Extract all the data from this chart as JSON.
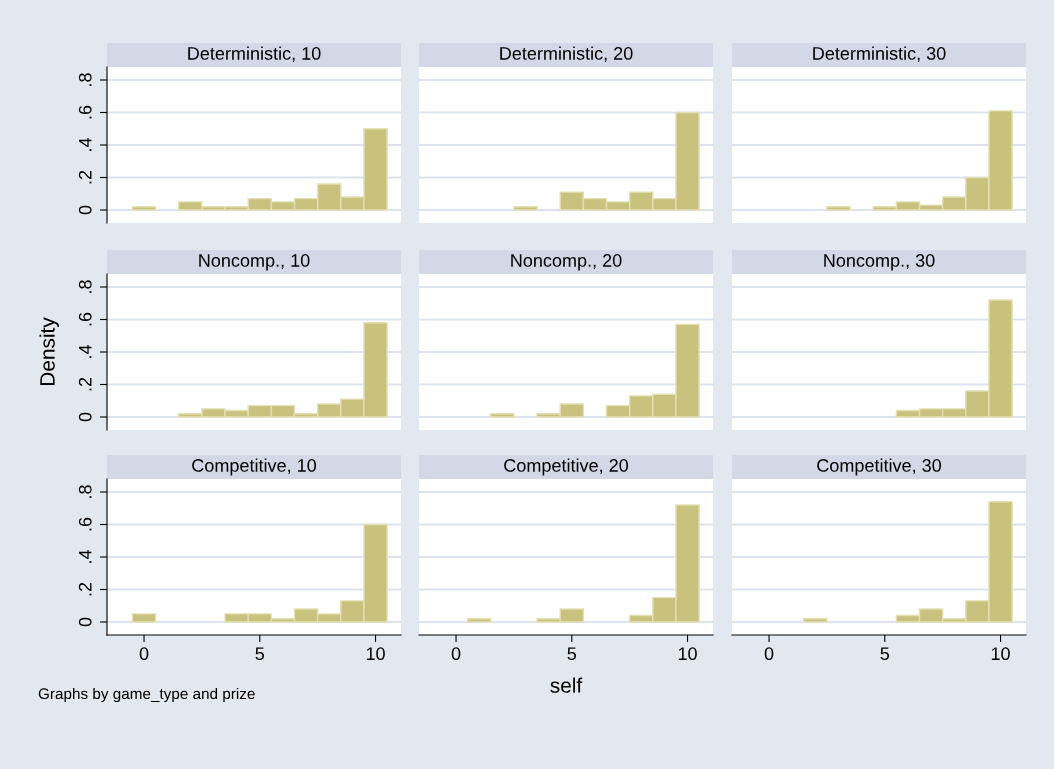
{
  "chart_data": [
    {
      "type": "histogram",
      "title": "Deterministic, 10",
      "bins": [
        -0.5,
        0.5,
        1.5,
        2.5,
        3.5,
        4.5,
        5.5,
        6.5,
        7.5,
        8.5,
        9.5,
        10.5
      ],
      "values": [
        0.02,
        0,
        0.05,
        0.02,
        0.02,
        0.07,
        0.05,
        0.07,
        0.16,
        0.08,
        0.5
      ],
      "color": "#c9c27f",
      "xlim": [
        -1.6,
        11.1
      ],
      "ylim": [
        -0.08,
        0.88
      ],
      "yticks": [
        {
          "value": 0,
          "label": "0"
        },
        {
          "value": 0.2,
          "label": ".2"
        },
        {
          "value": 0.4,
          "label": ".4"
        },
        {
          "value": 0.6,
          "label": ".6"
        },
        {
          "value": 0.8,
          "label": ".8"
        }
      ],
      "grid": "y",
      "tick_labels": "y"
    },
    {
      "type": "histogram",
      "title": "Deterministic, 20",
      "bins": [
        -0.5,
        0.5,
        1.5,
        2.5,
        3.5,
        4.5,
        5.5,
        6.5,
        7.5,
        8.5,
        9.5,
        10.5
      ],
      "values": [
        0,
        0,
        0,
        0.02,
        0,
        0.11,
        0.07,
        0.05,
        0.11,
        0.07,
        0.6
      ],
      "color": "#c9c27f",
      "xlim": [
        -1.6,
        11.1
      ],
      "ylim": [
        -0.08,
        0.88
      ],
      "yticks": [
        {
          "value": 0,
          "label": null
        },
        {
          "value": 0.2,
          "label": null
        },
        {
          "value": 0.4,
          "label": null
        },
        {
          "value": 0.6,
          "label": null
        },
        {
          "value": 0.8,
          "label": null
        }
      ],
      "grid": "y",
      "tick_labels": false
    },
    {
      "type": "histogram",
      "title": "Deterministic, 30",
      "bins": [
        -0.5,
        0.5,
        1.5,
        2.5,
        3.5,
        4.5,
        5.5,
        6.5,
        7.5,
        8.5,
        9.5,
        10.5
      ],
      "values": [
        0,
        0,
        0,
        0.02,
        0,
        0.02,
        0.05,
        0.03,
        0.08,
        0.2,
        0.61
      ],
      "color": "#c9c27f",
      "xlim": [
        -1.6,
        11.1
      ],
      "ylim": [
        -0.08,
        0.88
      ],
      "yticks": [
        {
          "value": 0,
          "label": null
        },
        {
          "value": 0.2,
          "label": null
        },
        {
          "value": 0.4,
          "label": null
        },
        {
          "value": 0.6,
          "label": null
        },
        {
          "value": 0.8,
          "label": null
        }
      ],
      "grid": "y",
      "tick_labels": false
    },
    {
      "type": "histogram",
      "title": "Noncomp., 10",
      "ylabel": "Density",
      "bins": [
        -0.5,
        0.5,
        1.5,
        2.5,
        3.5,
        4.5,
        5.5,
        6.5,
        7.5,
        8.5,
        9.5,
        10.5
      ],
      "values": [
        0,
        0,
        0.02,
        0.05,
        0.04,
        0.07,
        0.07,
        0.02,
        0.08,
        0.11,
        0.58
      ],
      "color": "#c9c27f",
      "xlim": [
        -1.6,
        11.1
      ],
      "ylim": [
        -0.08,
        0.88
      ],
      "yticks": [
        {
          "value": 0,
          "label": "0"
        },
        {
          "value": 0.2,
          "label": ".2"
        },
        {
          "value": 0.4,
          "label": ".4"
        },
        {
          "value": 0.6,
          "label": ".6"
        },
        {
          "value": 0.8,
          "label": ".8"
        }
      ],
      "grid": "y",
      "tick_labels": "y"
    },
    {
      "type": "histogram",
      "title": "Noncomp., 20",
      "bins": [
        -0.5,
        0.5,
        1.5,
        2.5,
        3.5,
        4.5,
        5.5,
        6.5,
        7.5,
        8.5,
        9.5,
        10.5
      ],
      "values": [
        0,
        0,
        0.02,
        0,
        0.02,
        0.08,
        0,
        0.07,
        0.13,
        0.14,
        0.57
      ],
      "color": "#c9c27f",
      "xlim": [
        -1.6,
        11.1
      ],
      "ylim": [
        -0.08,
        0.88
      ],
      "yticks": [
        {
          "value": 0,
          "label": null
        },
        {
          "value": 0.2,
          "label": null
        },
        {
          "value": 0.4,
          "label": null
        },
        {
          "value": 0.6,
          "label": null
        },
        {
          "value": 0.8,
          "label": null
        }
      ],
      "grid": "y",
      "tick_labels": false
    },
    {
      "type": "histogram",
      "title": "Noncomp., 30",
      "bins": [
        -0.5,
        0.5,
        1.5,
        2.5,
        3.5,
        4.5,
        5.5,
        6.5,
        7.5,
        8.5,
        9.5,
        10.5
      ],
      "values": [
        0,
        0,
        0,
        0,
        0,
        0,
        0.04,
        0.05,
        0.05,
        0.16,
        0.72
      ],
      "color": "#c9c27f",
      "xlim": [
        -1.6,
        11.1
      ],
      "ylim": [
        -0.08,
        0.88
      ],
      "yticks": [
        {
          "value": 0,
          "label": null
        },
        {
          "value": 0.2,
          "label": null
        },
        {
          "value": 0.4,
          "label": null
        },
        {
          "value": 0.6,
          "label": null
        },
        {
          "value": 0.8,
          "label": null
        }
      ],
      "grid": "y",
      "tick_labels": false
    },
    {
      "type": "histogram",
      "title": "Competitive, 10",
      "annotations": [
        "Graphs by game_type and prize"
      ],
      "bins": [
        -0.5,
        0.5,
        1.5,
        2.5,
        3.5,
        4.5,
        5.5,
        6.5,
        7.5,
        8.5,
        9.5,
        10.5
      ],
      "values": [
        0.05,
        0,
        0,
        0,
        0.05,
        0.05,
        0.02,
        0.08,
        0.05,
        0.13,
        0.6
      ],
      "color": "#c9c27f",
      "xlim": [
        -1.6,
        11.1
      ],
      "xticks": [
        0,
        5,
        10
      ],
      "ylim": [
        -0.08,
        0.88
      ],
      "yticks": [
        {
          "value": 0,
          "label": "0"
        },
        {
          "value": 0.2,
          "label": ".2"
        },
        {
          "value": 0.4,
          "label": ".4"
        },
        {
          "value": 0.6,
          "label": ".6"
        },
        {
          "value": 0.8,
          "label": ".8"
        }
      ],
      "grid": "y"
    },
    {
      "type": "histogram",
      "title": "Competitive, 20",
      "xlabel": "self",
      "bins": [
        -0.5,
        0.5,
        1.5,
        2.5,
        3.5,
        4.5,
        5.5,
        6.5,
        7.5,
        8.5,
        9.5,
        10.5
      ],
      "values": [
        0,
        0.02,
        0,
        0,
        0.02,
        0.08,
        0,
        0,
        0.04,
        0.15,
        0.72
      ],
      "color": "#c9c27f",
      "xlim": [
        -1.6,
        11.1
      ],
      "xticks": [
        0,
        5,
        10
      ],
      "ylim": [
        -0.08,
        0.88
      ],
      "yticks": [
        {
          "value": 0,
          "label": null
        },
        {
          "value": 0.2,
          "label": null
        },
        {
          "value": 0.4,
          "label": null
        },
        {
          "value": 0.6,
          "label": null
        },
        {
          "value": 0.8,
          "label": null
        }
      ],
      "grid": "y",
      "tick_labels": "x"
    },
    {
      "type": "histogram",
      "title": "Competitive, 30",
      "bins": [
        -0.5,
        0.5,
        1.5,
        2.5,
        3.5,
        4.5,
        5.5,
        6.5,
        7.5,
        8.5,
        9.5,
        10.5
      ],
      "values": [
        0,
        0,
        0.02,
        0,
        0,
        0,
        0.04,
        0.08,
        0.02,
        0.13,
        0.74
      ],
      "color": "#c9c27f",
      "xlim": [
        -1.6,
        11.1
      ],
      "xticks": [
        0,
        5,
        10
      ],
      "ylim": [
        -0.08,
        0.88
      ],
      "yticks": [
        {
          "value": 0,
          "label": null
        },
        {
          "value": 0.2,
          "label": null
        },
        {
          "value": 0.4,
          "label": null
        },
        {
          "value": 0.6,
          "label": null
        },
        {
          "value": 0.8,
          "label": null
        }
      ],
      "grid": "y",
      "tick_labels": "x"
    }
  ]
}
